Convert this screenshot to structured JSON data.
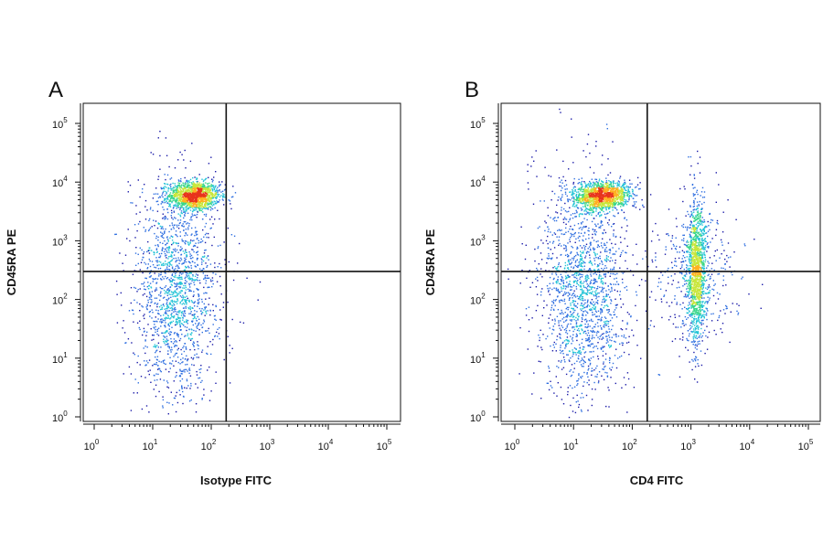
{
  "chart_data": [
    {
      "type": "scatter",
      "panel_label": "A",
      "xlabel": "Isotype FITC",
      "ylabel": "CD45RA PE",
      "x_scale": "log",
      "y_scale": "log",
      "xlim": [
        1,
        100000
      ],
      "ylim": [
        1,
        100000
      ],
      "x_ticks": [
        "10",
        "10",
        "10",
        "10",
        "10",
        "10"
      ],
      "x_tick_exponents": [
        "0",
        "1",
        "2",
        "3",
        "4",
        "5"
      ],
      "y_ticks": [
        "10",
        "10",
        "10",
        "10",
        "10",
        "10"
      ],
      "y_tick_exponents": [
        "0",
        "1",
        "2",
        "3",
        "4",
        "5"
      ],
      "quadrant_gate": {
        "x": 180,
        "y": 300
      },
      "populations": [
        {
          "name_shown": false,
          "x_center": 50,
          "y_center": 6000,
          "x_spread_decades": 0.22,
          "y_spread_decades": 0.12,
          "density": "high"
        },
        {
          "name_shown": false,
          "x_center": 25,
          "y_center": 150,
          "x_spread_decades": 0.32,
          "y_spread_decades": 0.9,
          "density": "medium"
        }
      ],
      "color_scale": [
        "#1a1aa8",
        "#2f6fe0",
        "#22c3d6",
        "#38d68a",
        "#c8e63a",
        "#ffb020",
        "#e8341c"
      ]
    },
    {
      "type": "scatter",
      "panel_label": "B",
      "xlabel": "CD4 FITC",
      "ylabel": "CD45RA PE",
      "x_scale": "log",
      "y_scale": "log",
      "xlim": [
        1,
        100000
      ],
      "ylim": [
        1,
        100000
      ],
      "x_ticks": [
        "10",
        "10",
        "10",
        "10",
        "10",
        "10"
      ],
      "x_tick_exponents": [
        "0",
        "1",
        "2",
        "3",
        "4",
        "5"
      ],
      "y_ticks": [
        "10",
        "10",
        "10",
        "10",
        "10",
        "10"
      ],
      "y_tick_exponents": [
        "0",
        "1",
        "2",
        "3",
        "4",
        "5"
      ],
      "quadrant_gate": {
        "x": 180,
        "y": 300
      },
      "populations": [
        {
          "name_shown": false,
          "x_center": 30,
          "y_center": 6000,
          "x_spread_decades": 0.25,
          "y_spread_decades": 0.12,
          "density": "high"
        },
        {
          "name_shown": false,
          "x_center": 15,
          "y_center": 150,
          "x_spread_decades": 0.35,
          "y_spread_decades": 0.9,
          "density": "medium"
        },
        {
          "name_shown": false,
          "x_center": 1200,
          "y_center": 300,
          "x_spread_decades": 0.08,
          "y_spread_decades": 0.6,
          "density": "medium"
        }
      ],
      "color_scale": [
        "#1a1aa8",
        "#2f6fe0",
        "#22c3d6",
        "#38d68a",
        "#c8e63a",
        "#ffb020",
        "#e8341c"
      ]
    }
  ]
}
